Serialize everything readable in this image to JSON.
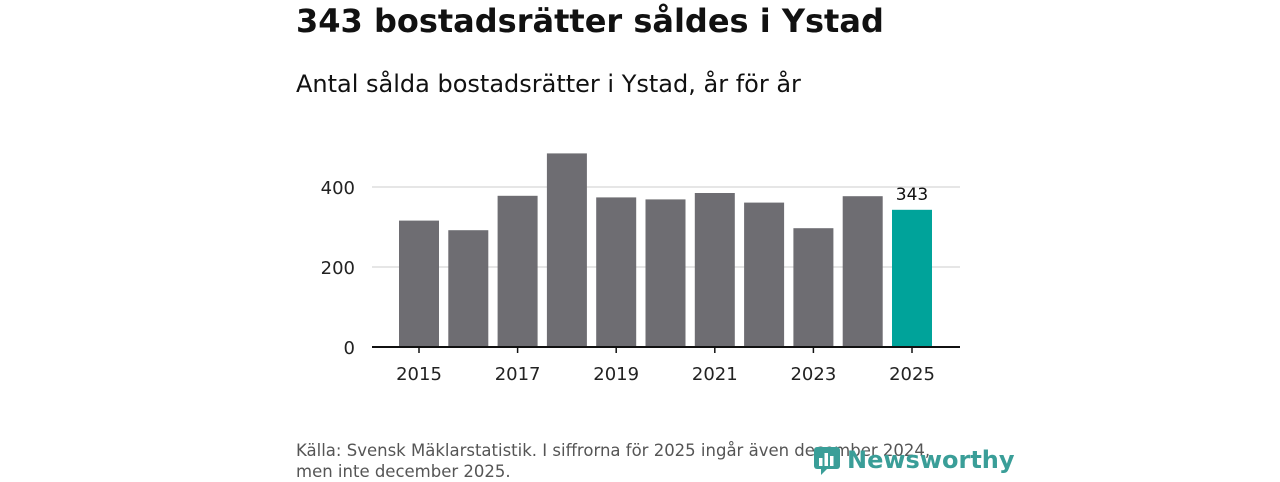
{
  "chart_data": {
    "type": "bar",
    "title": "343 bostadsrätter såldes i Ystad",
    "subtitle": "Antal sålda bostadsrätter i Ystad, år för år",
    "categories": [
      "2015",
      "2016",
      "2017",
      "2018",
      "2019",
      "2020",
      "2021",
      "2022",
      "2023",
      "2024",
      "2025"
    ],
    "values": [
      316,
      292,
      378,
      484,
      374,
      369,
      385,
      361,
      297,
      377,
      343
    ],
    "x_tick_labels": [
      "2015",
      "2017",
      "2019",
      "2021",
      "2023",
      "2025"
    ],
    "y_ticks": [
      0,
      200,
      400
    ],
    "ylim": [
      0,
      500
    ],
    "xlabel": "",
    "ylabel": "",
    "grid": true,
    "highlight": {
      "category": "2025",
      "label": "343"
    },
    "colors": {
      "bar": "#6e6d72",
      "highlight": "#00a39a",
      "grid": "#dddddd",
      "axis": "#111111"
    }
  },
  "source_lines": [
    "Källa: Svensk Mäklarstatistik. I siffrorna för 2025 ingår även december 2024,",
    "men inte december 2025."
  ],
  "brand": {
    "name": "Newsworthy",
    "icon": "newsworthy-logo-icon",
    "color": "#3a9e98"
  }
}
